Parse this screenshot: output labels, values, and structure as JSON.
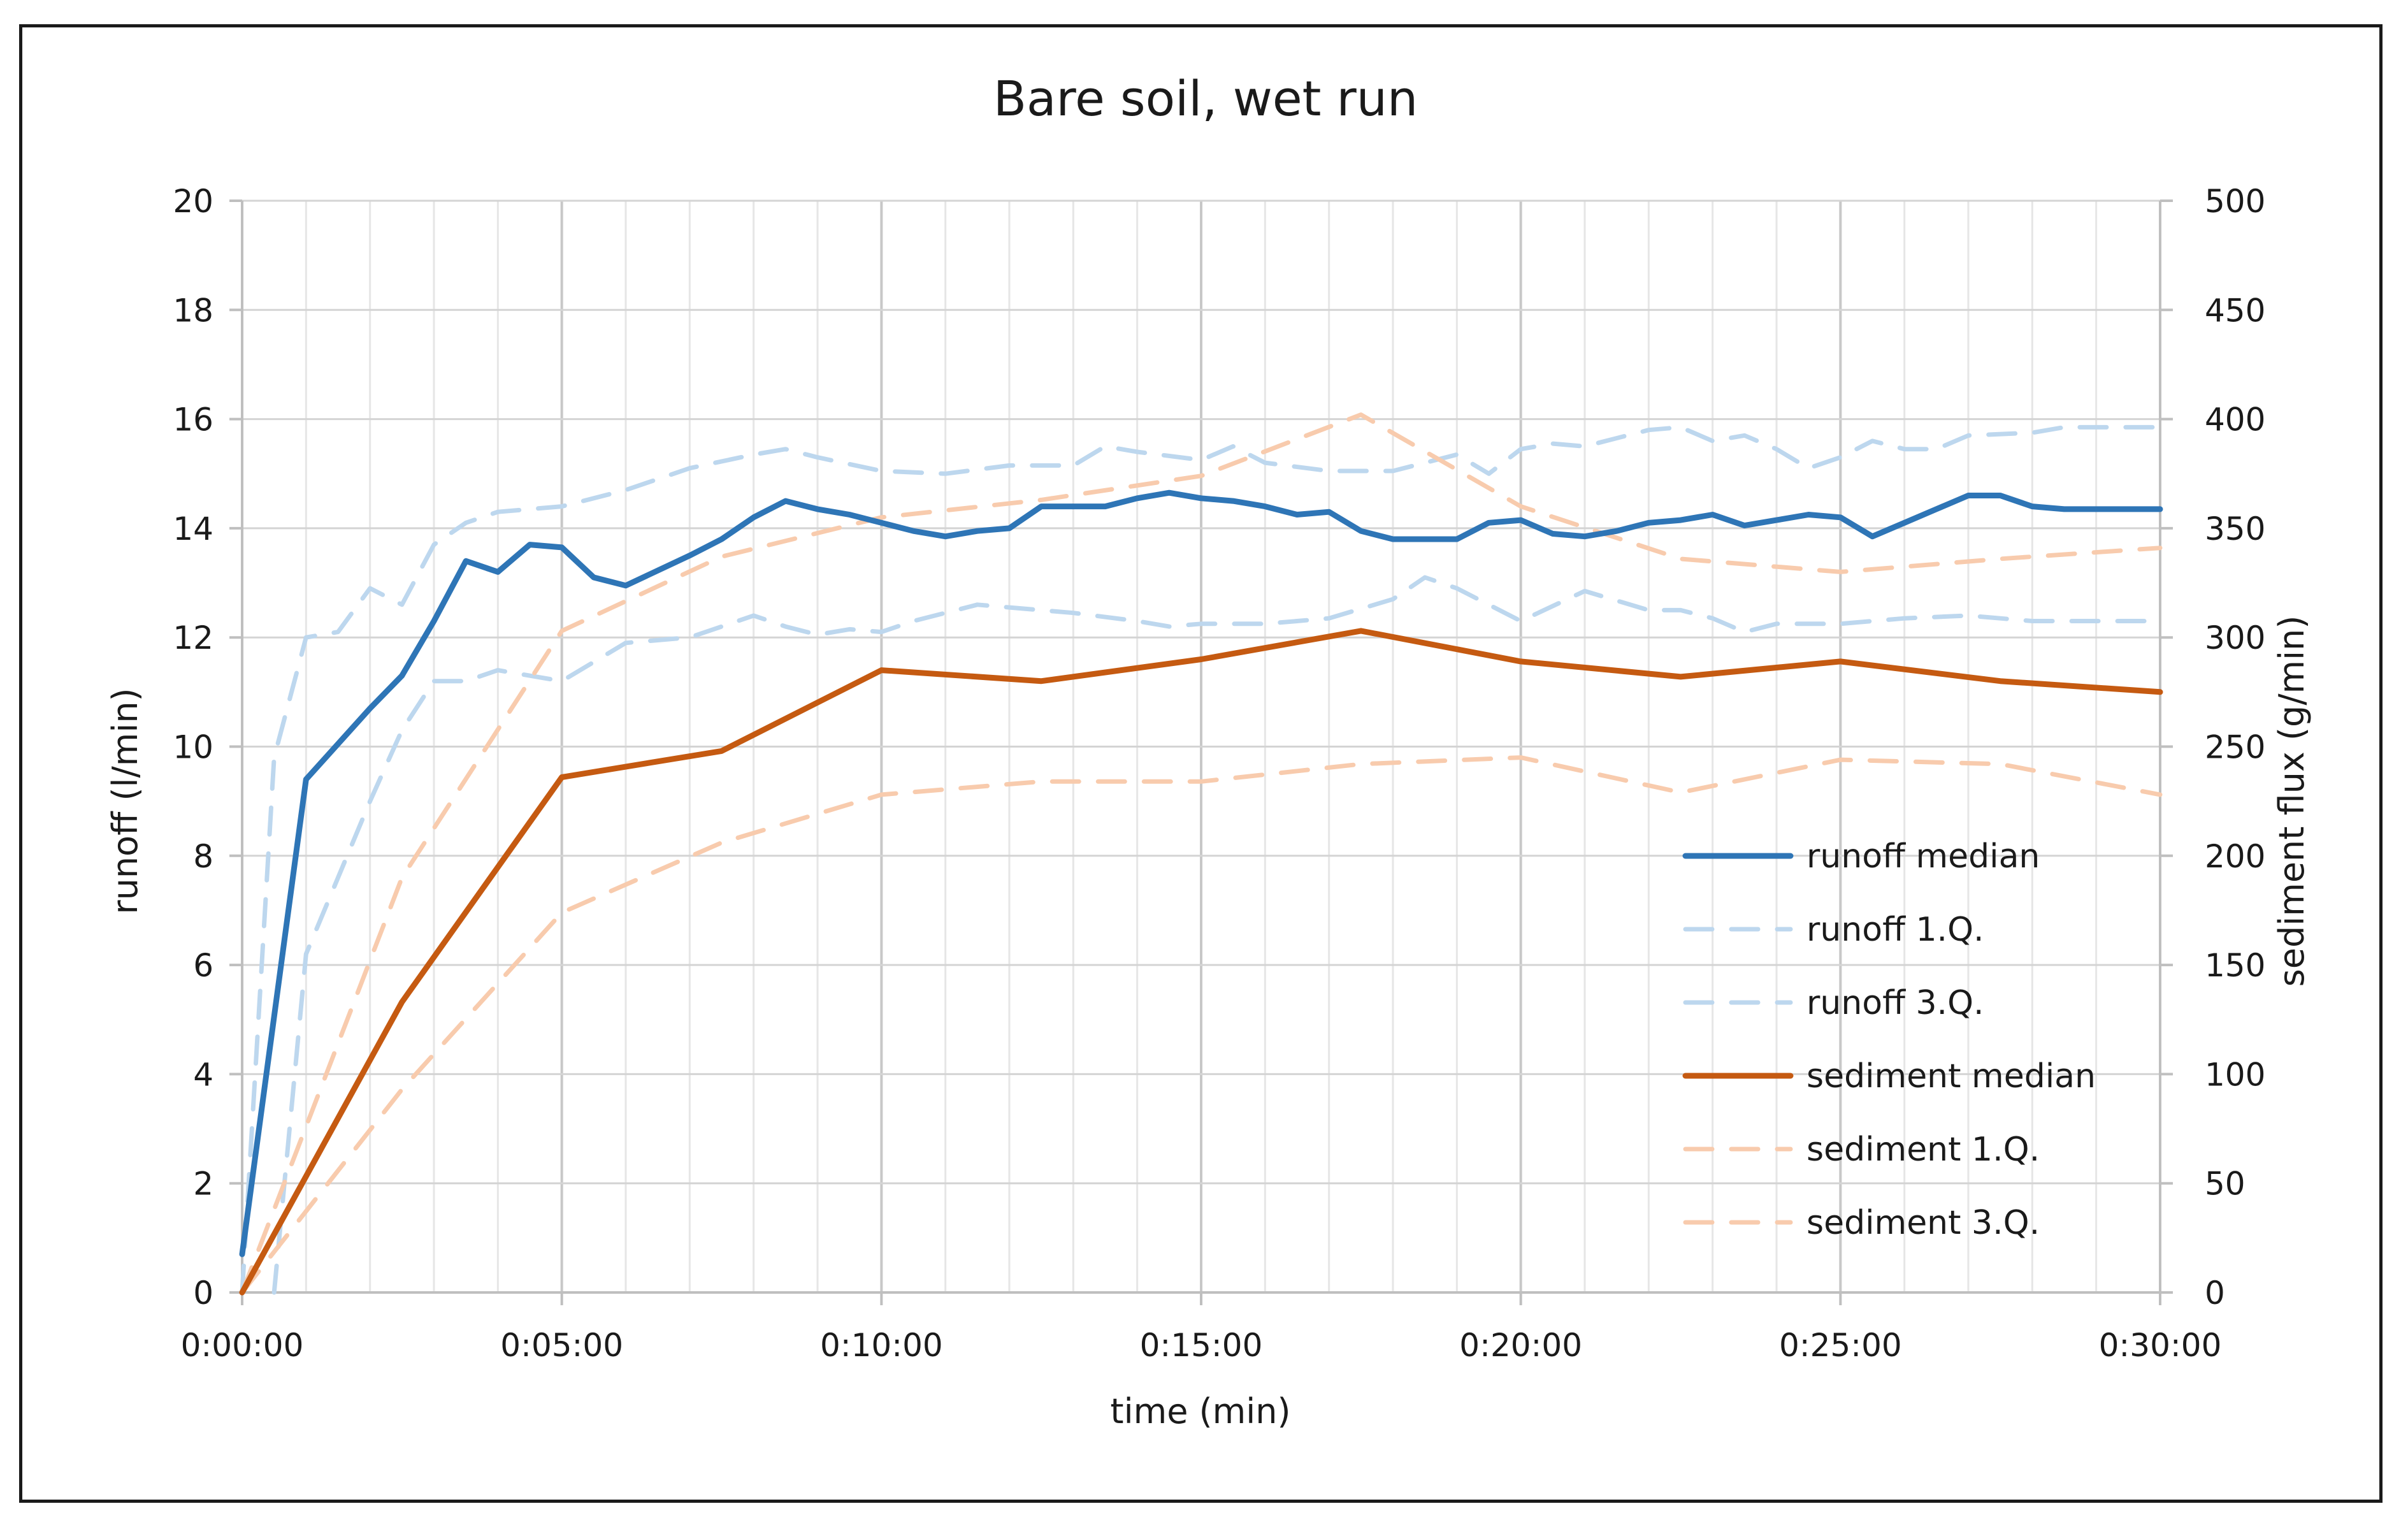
{
  "chart_data": {
    "type": "line",
    "title": "Bare soil, wet run",
    "xlabel": "time (min)",
    "ylabel": "runoff (l/min)",
    "y2label": "sediment flux (g/min)",
    "xlim": [
      0,
      30
    ],
    "ylim": [
      0,
      20
    ],
    "y2lim": [
      0,
      500
    ],
    "x_ticks": [
      "0:00:00",
      "0:05:00",
      "0:10:00",
      "0:15:00",
      "0:20:00",
      "0:25:00",
      "0:30:00"
    ],
    "y_ticks": [
      "0",
      "2",
      "4",
      "6",
      "8",
      "10",
      "12",
      "14",
      "16",
      "18",
      "20"
    ],
    "y2_ticks": [
      "0",
      "50",
      "100",
      "150",
      "200",
      "250",
      "300",
      "350",
      "400",
      "450",
      "500"
    ],
    "grid": true,
    "legend_position": "right",
    "x_unit_note": "x values in minutes",
    "series": [
      {
        "name": "runoff median",
        "axis": "left",
        "color": "#2e75b6",
        "dash": "solid",
        "x": [
          0,
          1,
          2,
          2.5,
          3,
          3.5,
          4,
          4.5,
          5,
          5.5,
          6,
          7,
          7.5,
          8,
          8.5,
          9,
          9.5,
          10,
          10.5,
          11,
          11.5,
          12,
          12.5,
          13,
          13.5,
          14,
          14.5,
          15,
          15.5,
          16,
          16.5,
          17,
          17.5,
          18,
          18.5,
          19,
          19.5,
          20,
          20.5,
          21,
          21.5,
          22,
          22.5,
          23,
          23.5,
          24,
          24.5,
          25,
          25.5,
          26,
          26.5,
          27,
          27.5,
          28,
          28.5,
          29,
          29.5,
          30
        ],
        "values": [
          0.7,
          9.4,
          10.7,
          11.3,
          12.3,
          13.4,
          13.2,
          13.7,
          13.65,
          13.1,
          12.95,
          13.5,
          13.8,
          14.2,
          14.5,
          14.35,
          14.25,
          14.1,
          13.95,
          13.85,
          13.95,
          14.0,
          14.4,
          14.4,
          14.4,
          14.55,
          14.65,
          14.55,
          14.5,
          14.4,
          14.25,
          14.3,
          13.95,
          13.8,
          13.8,
          13.8,
          14.1,
          14.15,
          13.9,
          13.85,
          13.95,
          14.1,
          14.15,
          14.25,
          14.05,
          14.15,
          14.25,
          14.2,
          13.85,
          14.1,
          14.35,
          14.6,
          14.6,
          14.4,
          14.35,
          14.35,
          14.35,
          14.35
        ]
      },
      {
        "name": "runoff 1.Q.",
        "axis": "left",
        "color": "#bdd7ee",
        "dash": "dashed",
        "x": [
          0.5,
          1,
          2,
          2.5,
          3,
          3.5,
          4,
          4.5,
          5,
          6,
          7,
          7.5,
          8,
          8.5,
          9,
          9.5,
          10,
          10.5,
          11,
          11.5,
          12,
          13,
          14,
          14.5,
          15,
          16,
          17,
          18,
          18.5,
          19,
          20,
          21,
          22,
          22.5,
          23,
          23.5,
          24,
          25,
          26,
          27,
          28,
          29,
          30
        ],
        "values": [
          0,
          6.2,
          9.0,
          10.3,
          11.2,
          11.2,
          11.4,
          11.3,
          11.2,
          11.9,
          12.0,
          12.2,
          12.4,
          12.2,
          12.05,
          12.15,
          12.1,
          12.3,
          12.45,
          12.6,
          12.55,
          12.45,
          12.3,
          12.2,
          12.25,
          12.25,
          12.35,
          12.7,
          13.1,
          12.9,
          12.3,
          12.85,
          12.5,
          12.5,
          12.35,
          12.1,
          12.25,
          12.25,
          12.35,
          12.4,
          12.3,
          12.3,
          12.3
        ]
      },
      {
        "name": "runoff 3.Q.",
        "axis": "left",
        "color": "#bdd7ee",
        "dash": "dashed",
        "x": [
          0,
          0.5,
          1,
          1.5,
          2,
          2.5,
          3,
          3.5,
          4,
          5,
          6,
          7,
          8,
          8.5,
          9,
          10,
          11,
          12,
          13,
          13.5,
          14,
          15,
          15.5,
          16,
          17,
          18,
          19,
          19.5,
          20,
          20.5,
          21,
          22,
          22.5,
          23,
          23.5,
          24,
          24.5,
          25,
          25.5,
          26,
          26.5,
          27,
          28,
          28.5,
          29,
          30
        ],
        "values": [
          0,
          9.8,
          12.0,
          12.1,
          12.9,
          12.6,
          13.7,
          14.1,
          14.3,
          14.4,
          14.7,
          15.1,
          15.35,
          15.45,
          15.3,
          15.05,
          15.0,
          15.15,
          15.15,
          15.5,
          15.4,
          15.25,
          15.5,
          15.2,
          15.05,
          15.05,
          15.35,
          15.0,
          15.45,
          15.55,
          15.5,
          15.8,
          15.85,
          15.6,
          15.7,
          15.45,
          15.1,
          15.3,
          15.6,
          15.45,
          15.45,
          15.7,
          15.75,
          15.85,
          15.85,
          15.85
        ]
      },
      {
        "name": "sediment median",
        "axis": "right",
        "color": "#c55a11",
        "dash": "solid",
        "x": [
          0,
          2.5,
          5,
          7.5,
          10,
          12.5,
          15,
          17.5,
          20,
          22.5,
          25,
          27.5,
          30
        ],
        "values": [
          0,
          133,
          236,
          248,
          285,
          280,
          290,
          303,
          289,
          282,
          289,
          280,
          275
        ]
      },
      {
        "name": "sediment 1.Q.",
        "axis": "right",
        "color": "#f8cbad",
        "dash": "dashed",
        "x": [
          0,
          2.5,
          5,
          7.5,
          10,
          12.5,
          15,
          17.5,
          20,
          22.5,
          25,
          27.5,
          30
        ],
        "values": [
          0,
          93,
          174,
          206,
          228,
          234,
          234,
          242,
          245,
          229,
          244,
          242,
          228
        ]
      },
      {
        "name": "sediment 3.Q.",
        "axis": "right",
        "color": "#f8cbad",
        "dash": "dashed",
        "x": [
          0,
          2.5,
          5,
          7.5,
          10,
          12.5,
          15,
          17.5,
          20,
          22.5,
          25,
          27.5,
          30
        ],
        "values": [
          0,
          190,
          303,
          337,
          355,
          363,
          374,
          402,
          360,
          336,
          330,
          336,
          341
        ]
      }
    ]
  }
}
